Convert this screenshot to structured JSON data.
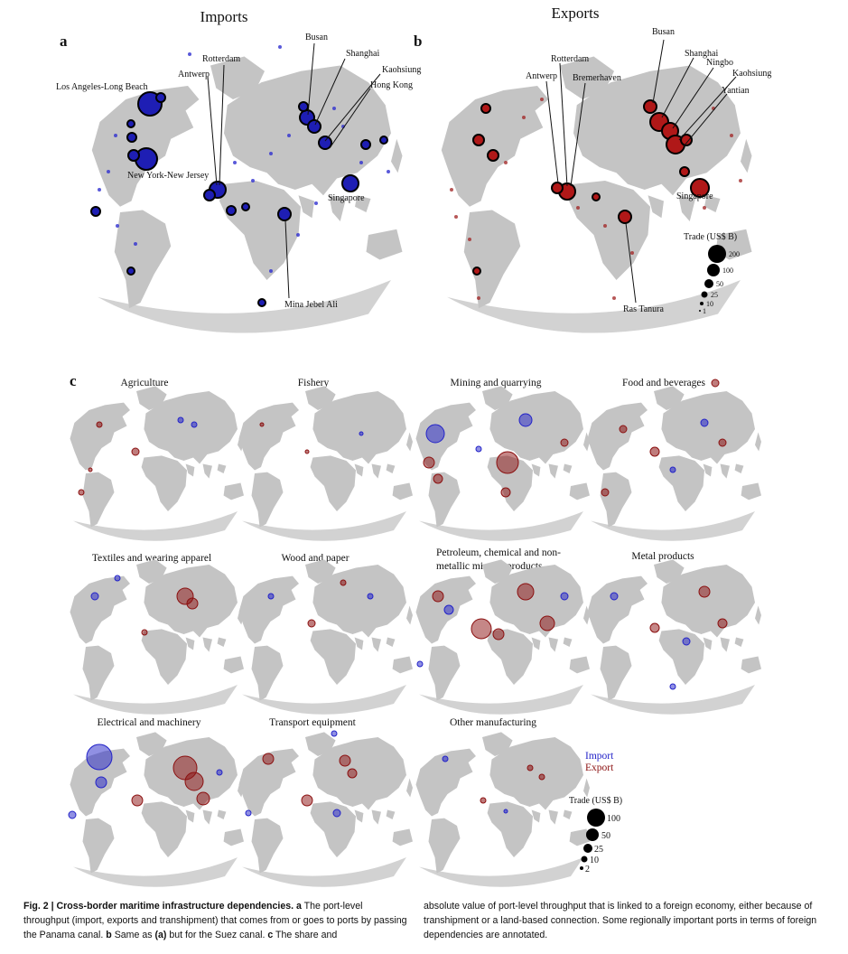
{
  "panel_a": {
    "letter": "a",
    "title": "Imports",
    "ports": [
      {
        "name": "Los Angeles-Long Beach"
      },
      {
        "name": "Antwerp"
      },
      {
        "name": "Rotterdam"
      },
      {
        "name": "Busan"
      },
      {
        "name": "Shanghai"
      },
      {
        "name": "Kaohsiung"
      },
      {
        "name": "Hong Kong"
      },
      {
        "name": "New York-New Jersey"
      },
      {
        "name": "Singapore"
      },
      {
        "name": "Mina Jebel Ali"
      }
    ]
  },
  "panel_b": {
    "letter": "b",
    "title": "Exports",
    "ports": [
      {
        "name": "Busan"
      },
      {
        "name": "Shanghai"
      },
      {
        "name": "Ningbo"
      },
      {
        "name": "Kaohsiung"
      },
      {
        "name": "Yantian"
      },
      {
        "name": "Rotterdam"
      },
      {
        "name": "Antwerp"
      },
      {
        "name": "Bremerhaven"
      },
      {
        "name": "Singapore"
      },
      {
        "name": "Ras Tanura"
      }
    ],
    "legend": {
      "title": "Trade (US$ B)",
      "values": [
        "200",
        "100",
        "50",
        "25",
        "10",
        "1"
      ]
    }
  },
  "panel_c": {
    "letter": "c",
    "sectors": [
      "Agriculture",
      "Fishery",
      "Mining and quarrying",
      "Food and beverages",
      "Textiles and wearing apparel",
      "Wood and paper",
      "Petroleum, chemical and non-",
      "metallic mineral products",
      "Metal products",
      "Electrical and machinery",
      "Transport equipment",
      "Other manufacturing"
    ],
    "legend": {
      "import_label": "Import",
      "export_label": "Export",
      "title": "Trade (US$ B)",
      "values": [
        "100",
        "50",
        "25",
        "10",
        "2"
      ]
    }
  },
  "colors": {
    "import": "#2222c8",
    "export": "#8b1010",
    "land": "#c4c4c4"
  },
  "caption": {
    "fig_label": "Fig. 2 | Cross-border maritime infrastructure dependencies.",
    "col1_a": " a",
    "col1_text1": " The port-level throughput (import, exports and transhipment) that comes from or goes to ports by passing the Panama canal. ",
    "col1_b": "b",
    "col1_text2": " Same as ",
    "col1_paren": "(a)",
    "col1_text3": " but for the Suez canal. ",
    "col1_c": "c",
    "col1_text4": " The share and",
    "col2": "absolute value of port-level throughput that is linked to a foreign economy, either because of transhipment or a land-based connection. Some regionally important ports in terms of foreign dependencies are annotated."
  }
}
